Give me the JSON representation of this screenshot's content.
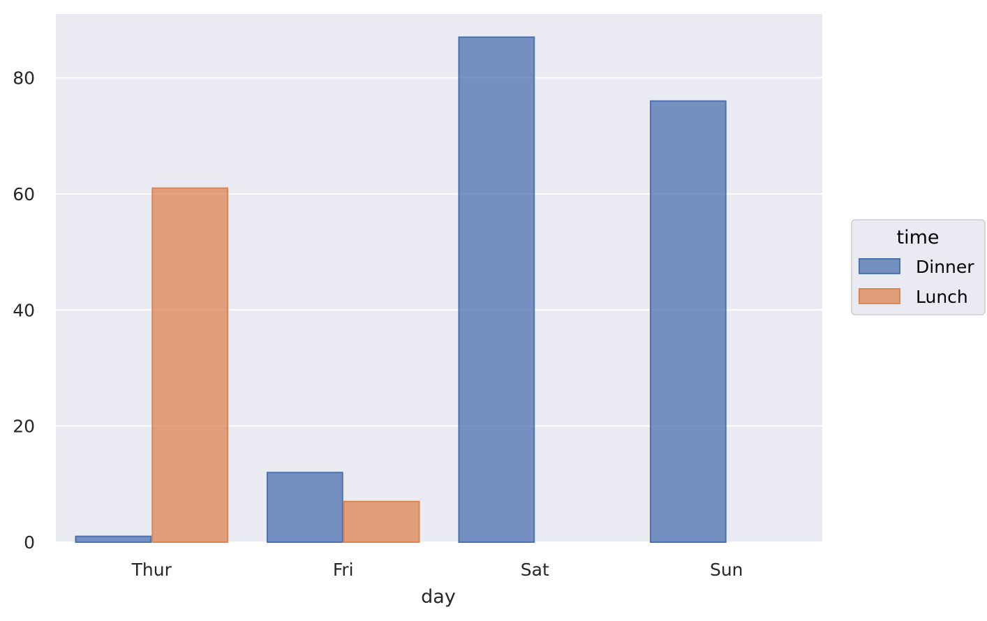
{
  "chart_data": {
    "type": "bar",
    "title": "",
    "xlabel": "day",
    "ylabel": "",
    "categories": [
      "Thur",
      "Fri",
      "Sat",
      "Sun"
    ],
    "series": [
      {
        "name": "Dinner",
        "values": [
          1,
          12,
          87,
          76
        ],
        "color": "#4c72b0"
      },
      {
        "name": "Lunch",
        "values": [
          61,
          7,
          0,
          0
        ],
        "color": "#dd8452"
      }
    ],
    "ylim": [
      0,
      91
    ],
    "yticks": [
      0,
      20,
      40,
      60,
      80
    ],
    "grid": true,
    "legend": {
      "title": "time",
      "placement": "right"
    },
    "background": "#eaeaf2"
  }
}
